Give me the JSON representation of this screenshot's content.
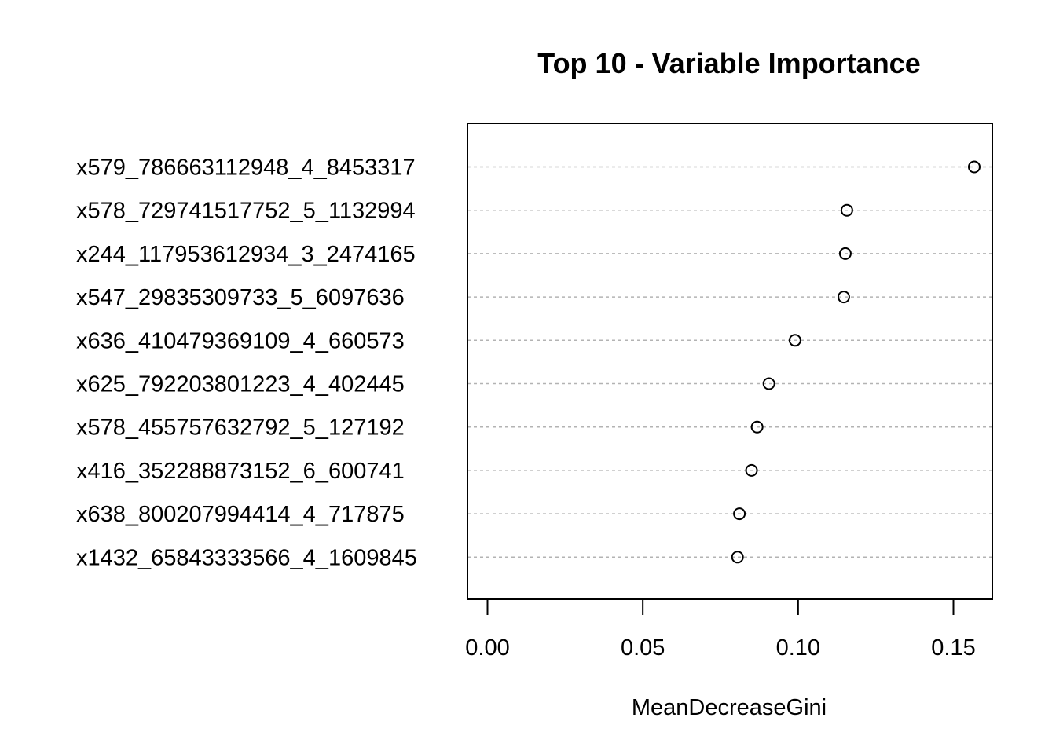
{
  "chart_data": {
    "type": "scatter",
    "title": "Top 10 - Variable Importance",
    "xlabel": "MeanDecreaseGini",
    "ylabel": "",
    "xlim": [
      -0.006,
      0.163
    ],
    "xticks": [
      0.0,
      0.05,
      0.1,
      0.15
    ],
    "xtick_labels": [
      "0.00",
      "0.05",
      "0.10",
      "0.15"
    ],
    "grid": "dotted horizontal guides per category",
    "categories": [
      "x579_786663112948_4_8453317",
      "x578_729741517752_5_1132994",
      "x244_117953612934_3_2474165",
      "x547_29835309733_5_6097636",
      "x636_410479369109_4_660573",
      "x625_792203801223_4_402445",
      "x578_455757632792_5_127192",
      "x416_352288873152_6_600741",
      "x638_800207994414_4_717875",
      "x1432_65843333566_4_1609845"
    ],
    "values": [
      0.1567,
      0.1157,
      0.1152,
      0.1147,
      0.099,
      0.0906,
      0.0868,
      0.085,
      0.0811,
      0.0805
    ]
  }
}
